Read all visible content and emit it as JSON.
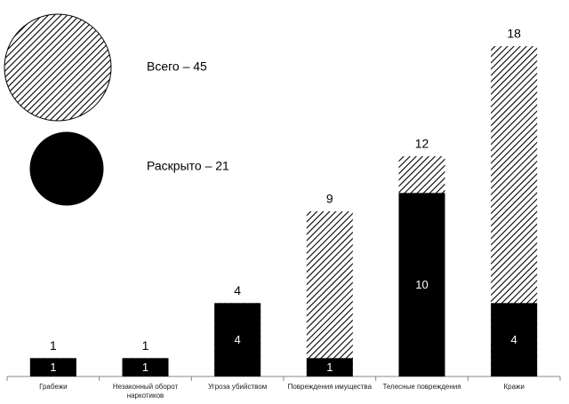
{
  "chart_data": {
    "type": "bar",
    "categories": [
      "Грабежи",
      "Незаконный оборот наркотиков",
      "Угроза убийством",
      "Повреждения имущества",
      "Телесные повреждения",
      "Кражи"
    ],
    "series": [
      {
        "name": "Всего – 45",
        "color": "#000000",
        "hatch": true,
        "values": [
          1,
          1,
          4,
          9,
          12,
          18
        ]
      },
      {
        "name": "Раскрыто – 21",
        "color": "#000000",
        "hatch": false,
        "values": [
          1,
          1,
          4,
          1,
          10,
          4
        ]
      }
    ]
  }
}
